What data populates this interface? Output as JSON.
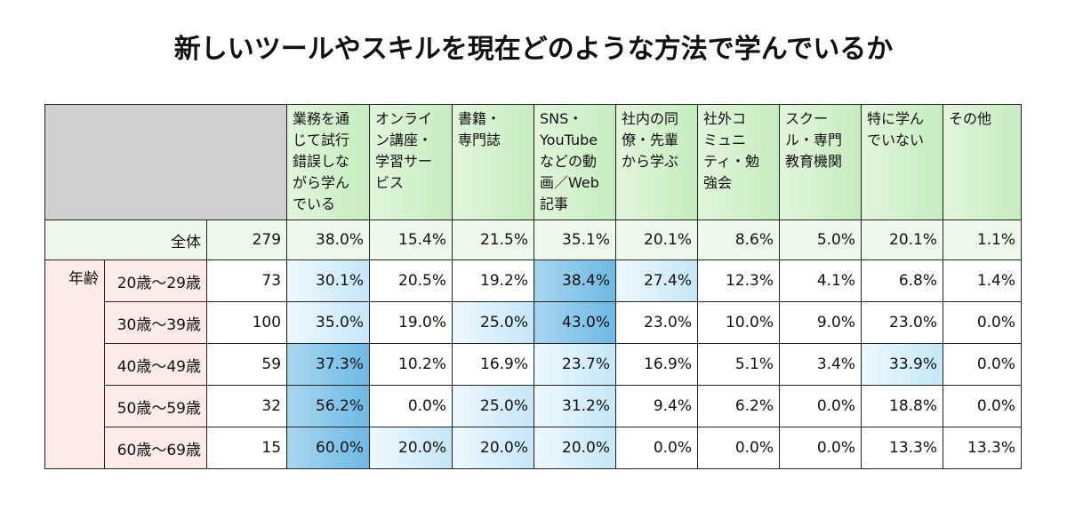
{
  "title": "新しいツールやスキルを現在どのような方法で学んでいるか",
  "chart_data": {
    "type": "table",
    "columns": [
      "業務を通じて試行錯誤しながら学んでいる",
      "オンライン講座・学習サービス",
      "書籍・専門誌",
      "SNS・YouTubeなどの動画／Web記事",
      "社内の同僚・先輩から学ぶ",
      "社外コミュニティ・勉強会",
      "スクール・専門教育機関",
      "特に学んでいない",
      "その他"
    ],
    "column_display": [
      "業務を通\nじて試行\n錯誤しな\nがら学ん\nでいる",
      "オンライ\nン講座・\n学習サー\nビス",
      "書籍・\n専門誌",
      "SNS・\nYouTube\nなどの動\n画／Web\n記事",
      "社内の同\n僚・先輩\nから学ぶ",
      "社外コ\nミュニ\nティ・勉\n強会",
      "スクー\nル・専門\n教育機関",
      "特に学ん\nでいない",
      "その他"
    ],
    "group_label": "年齢",
    "rows": [
      {
        "label": "全体",
        "n": "279",
        "values": [
          "38.0%",
          "15.4%",
          "21.5%",
          "35.1%",
          "20.1%",
          "8.6%",
          "5.0%",
          "20.1%",
          "1.1%"
        ],
        "highlight": [
          0,
          0,
          0,
          0,
          0,
          0,
          0,
          0,
          0
        ]
      },
      {
        "label": "20歳～29歳",
        "n": "73",
        "values": [
          "30.1%",
          "20.5%",
          "19.2%",
          "38.4%",
          "27.4%",
          "12.3%",
          "4.1%",
          "6.8%",
          "1.4%"
        ],
        "highlight": [
          1,
          0,
          0,
          2,
          1,
          0,
          0,
          0,
          0
        ]
      },
      {
        "label": "30歳～39歳",
        "n": "100",
        "values": [
          "35.0%",
          "19.0%",
          "25.0%",
          "43.0%",
          "23.0%",
          "10.0%",
          "9.0%",
          "23.0%",
          "0.0%"
        ],
        "highlight": [
          1,
          0,
          1,
          2,
          0,
          0,
          0,
          0,
          0
        ]
      },
      {
        "label": "40歳～49歳",
        "n": "59",
        "values": [
          "37.3%",
          "10.2%",
          "16.9%",
          "23.7%",
          "16.9%",
          "5.1%",
          "3.4%",
          "33.9%",
          "0.0%"
        ],
        "highlight": [
          2,
          0,
          0,
          1,
          0,
          0,
          0,
          1,
          0
        ]
      },
      {
        "label": "50歳～59歳",
        "n": "32",
        "values": [
          "56.2%",
          "0.0%",
          "25.0%",
          "31.2%",
          "9.4%",
          "6.2%",
          "0.0%",
          "18.8%",
          "0.0%"
        ],
        "highlight": [
          2,
          0,
          1,
          1,
          0,
          0,
          0,
          0,
          0
        ]
      },
      {
        "label": "60歳～69歳",
        "n": "15",
        "values": [
          "60.0%",
          "20.0%",
          "20.0%",
          "20.0%",
          "0.0%",
          "0.0%",
          "0.0%",
          "13.3%",
          "13.3%"
        ],
        "highlight": [
          2,
          1,
          1,
          1,
          0,
          0,
          0,
          0,
          0
        ]
      }
    ],
    "colors": {
      "header": "#c6ecc0",
      "total_row": "#eef8ea",
      "age_label": "#fcebe6",
      "highlight_light": "#c5e7f7",
      "highlight_strong": "#6db9e4"
    }
  }
}
